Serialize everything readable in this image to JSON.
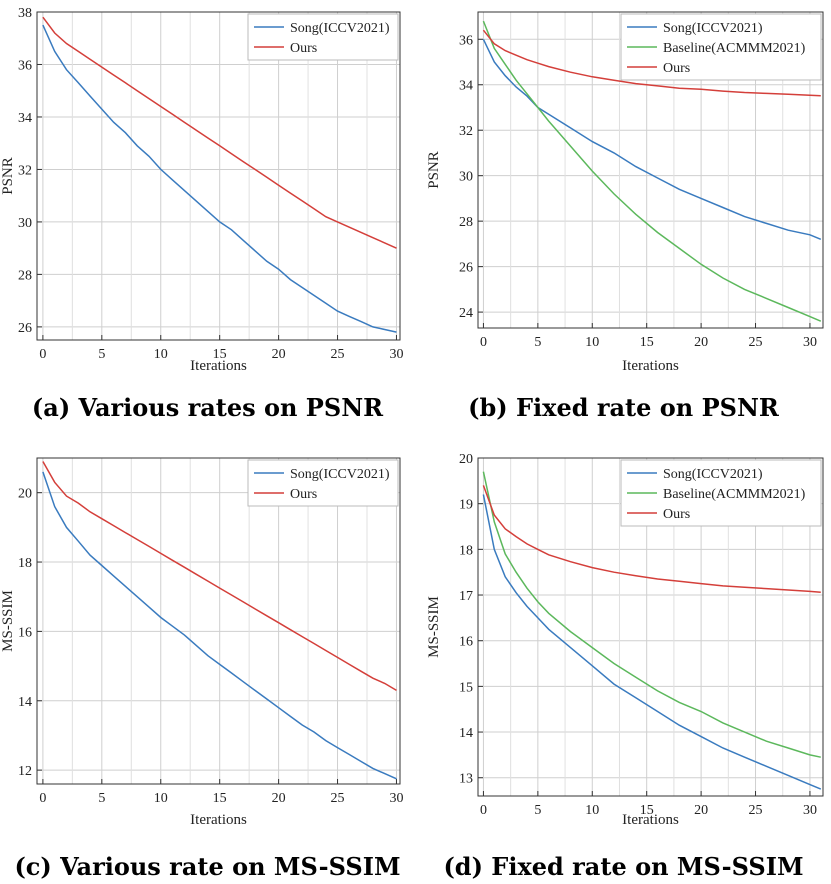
{
  "chart_data": [
    {
      "id": "a",
      "type": "line",
      "caption": "(a) Various rates on PSNR",
      "xlabel": "Iterations",
      "ylabel": "PSNR",
      "xlim": [
        -0.5,
        30.3
      ],
      "ylim": [
        25.5,
        38.0
      ],
      "xticks": [
        0,
        5,
        10,
        15,
        20,
        25,
        30
      ],
      "yticks": [
        26,
        28,
        30,
        32,
        34,
        36,
        38
      ],
      "grid": true,
      "legend": "top-right",
      "series": [
        {
          "name": "Song(ICCV2021)",
          "color": "#3a7bbf",
          "x": [
            0,
            1,
            2,
            3,
            4,
            5,
            6,
            7,
            8,
            9,
            10,
            11,
            12,
            13,
            14,
            15,
            16,
            17,
            18,
            19,
            20,
            21,
            22,
            23,
            24,
            25,
            26,
            27,
            28,
            29,
            30
          ],
          "y": [
            37.5,
            36.5,
            35.8,
            35.3,
            34.8,
            34.3,
            33.8,
            33.4,
            32.9,
            32.5,
            32.0,
            31.6,
            31.2,
            30.8,
            30.4,
            30.0,
            29.7,
            29.3,
            28.9,
            28.5,
            28.2,
            27.8,
            27.5,
            27.2,
            26.9,
            26.6,
            26.4,
            26.2,
            26.0,
            25.9,
            25.8
          ]
        },
        {
          "name": "Ours",
          "color": "#d43f3a",
          "x": [
            0,
            1,
            2,
            3,
            4,
            5,
            6,
            7,
            8,
            9,
            10,
            11,
            12,
            13,
            14,
            15,
            16,
            17,
            18,
            19,
            20,
            21,
            22,
            23,
            24,
            25,
            26,
            27,
            28,
            29,
            30
          ],
          "y": [
            37.8,
            37.2,
            36.8,
            36.5,
            36.2,
            35.9,
            35.6,
            35.3,
            35.0,
            34.7,
            34.4,
            34.1,
            33.8,
            33.5,
            33.2,
            32.9,
            32.6,
            32.3,
            32.0,
            31.7,
            31.4,
            31.1,
            30.8,
            30.5,
            30.2,
            30.0,
            29.8,
            29.6,
            29.4,
            29.2,
            29.0
          ]
        }
      ]
    },
    {
      "id": "b",
      "type": "line",
      "caption": "(b) Fixed rate on PSNR",
      "xlabel": "Iterations",
      "ylabel": "PSNR",
      "xlim": [
        -0.5,
        31.2
      ],
      "ylim": [
        23.3,
        37.2
      ],
      "xticks": [
        0,
        5,
        10,
        15,
        20,
        25,
        30
      ],
      "yticks": [
        24,
        26,
        28,
        30,
        32,
        34,
        36
      ],
      "grid": true,
      "legend": "top-right",
      "series": [
        {
          "name": "Song(ICCV2021)",
          "color": "#3a7bbf",
          "x": [
            0,
            1,
            2,
            3,
            4,
            5,
            6,
            8,
            10,
            12,
            14,
            16,
            18,
            20,
            22,
            24,
            26,
            28,
            30,
            31
          ],
          "y": [
            36.0,
            35.0,
            34.4,
            33.9,
            33.5,
            33.0,
            32.7,
            32.1,
            31.5,
            31.0,
            30.4,
            29.9,
            29.4,
            29.0,
            28.6,
            28.2,
            27.9,
            27.6,
            27.4,
            27.2
          ]
        },
        {
          "name": "Baseline(ACMMM2021)",
          "color": "#5cb85c",
          "x": [
            0,
            1,
            2,
            3,
            4,
            5,
            6,
            8,
            10,
            12,
            14,
            16,
            18,
            20,
            22,
            24,
            26,
            28,
            30,
            31
          ],
          "y": [
            36.8,
            35.6,
            34.9,
            34.2,
            33.6,
            33.0,
            32.4,
            31.3,
            30.2,
            29.2,
            28.3,
            27.5,
            26.8,
            26.1,
            25.5,
            25.0,
            24.6,
            24.2,
            23.8,
            23.6
          ]
        },
        {
          "name": "Ours",
          "color": "#d43f3a",
          "x": [
            0,
            1,
            2,
            3,
            4,
            5,
            6,
            8,
            10,
            12,
            14,
            16,
            18,
            20,
            22,
            24,
            26,
            28,
            30,
            31
          ],
          "y": [
            36.4,
            35.8,
            35.5,
            35.3,
            35.1,
            34.95,
            34.8,
            34.55,
            34.35,
            34.2,
            34.05,
            33.95,
            33.85,
            33.8,
            33.72,
            33.66,
            33.62,
            33.58,
            33.54,
            33.52
          ]
        }
      ]
    },
    {
      "id": "c",
      "type": "line",
      "caption": "(c) Various rate on MS-SSIM",
      "xlabel": "Iterations",
      "ylabel": "MS-SSIM",
      "xlim": [
        -0.5,
        30.3
      ],
      "ylim": [
        11.6,
        21.0
      ],
      "xticks": [
        0,
        5,
        10,
        15,
        20,
        25,
        30
      ],
      "yticks": [
        12,
        14,
        16,
        18,
        20
      ],
      "grid": true,
      "legend": "top-right",
      "series": [
        {
          "name": "Song(ICCV2021)",
          "color": "#3a7bbf",
          "x": [
            0,
            1,
            2,
            3,
            4,
            5,
            6,
            7,
            8,
            9,
            10,
            11,
            12,
            13,
            14,
            15,
            16,
            17,
            18,
            19,
            20,
            21,
            22,
            23,
            24,
            25,
            26,
            27,
            28,
            29,
            30
          ],
          "y": [
            20.6,
            19.6,
            19.0,
            18.6,
            18.2,
            17.9,
            17.6,
            17.3,
            17.0,
            16.7,
            16.4,
            16.15,
            15.9,
            15.6,
            15.3,
            15.05,
            14.8,
            14.55,
            14.3,
            14.05,
            13.8,
            13.55,
            13.3,
            13.1,
            12.85,
            12.65,
            12.45,
            12.25,
            12.05,
            11.9,
            11.75
          ]
        },
        {
          "name": "Ours",
          "color": "#d43f3a",
          "x": [
            0,
            1,
            2,
            3,
            4,
            5,
            6,
            7,
            8,
            9,
            10,
            11,
            12,
            13,
            14,
            15,
            16,
            17,
            18,
            19,
            20,
            21,
            22,
            23,
            24,
            25,
            26,
            27,
            28,
            29,
            30
          ],
          "y": [
            20.9,
            20.3,
            19.9,
            19.7,
            19.45,
            19.25,
            19.05,
            18.85,
            18.65,
            18.45,
            18.25,
            18.05,
            17.85,
            17.65,
            17.45,
            17.25,
            17.05,
            16.85,
            16.65,
            16.45,
            16.25,
            16.05,
            15.85,
            15.65,
            15.45,
            15.25,
            15.05,
            14.85,
            14.65,
            14.5,
            14.3
          ]
        }
      ]
    },
    {
      "id": "d",
      "type": "line",
      "caption": "(d) Fixed rate on MS-SSIM",
      "xlabel": "Iterations",
      "ylabel": "MS-SSIM",
      "xlim": [
        -0.5,
        31.2
      ],
      "ylim": [
        12.6,
        20.0
      ],
      "xticks": [
        0,
        5,
        10,
        15,
        20,
        25,
        30
      ],
      "yticks": [
        13,
        14,
        15,
        16,
        17,
        18,
        19,
        20
      ],
      "grid": true,
      "legend": "top-right",
      "series": [
        {
          "name": "Song(ICCV2021)",
          "color": "#3a7bbf",
          "x": [
            0,
            1,
            2,
            3,
            4,
            5,
            6,
            8,
            10,
            12,
            14,
            16,
            18,
            20,
            22,
            24,
            26,
            28,
            30,
            31
          ],
          "y": [
            19.2,
            18.0,
            17.4,
            17.05,
            16.75,
            16.5,
            16.25,
            15.85,
            15.45,
            15.05,
            14.75,
            14.45,
            14.15,
            13.9,
            13.65,
            13.45,
            13.25,
            13.05,
            12.85,
            12.75
          ]
        },
        {
          "name": "Baseline(ACMMM2021)",
          "color": "#5cb85c",
          "x": [
            0,
            1,
            2,
            3,
            4,
            5,
            6,
            8,
            10,
            12,
            14,
            16,
            18,
            20,
            22,
            24,
            26,
            28,
            30,
            31
          ],
          "y": [
            19.7,
            18.6,
            17.9,
            17.5,
            17.15,
            16.85,
            16.6,
            16.2,
            15.85,
            15.5,
            15.2,
            14.9,
            14.65,
            14.45,
            14.2,
            14.0,
            13.8,
            13.65,
            13.5,
            13.45
          ]
        },
        {
          "name": "Ours",
          "color": "#d43f3a",
          "x": [
            0,
            1,
            2,
            3,
            4,
            5,
            6,
            8,
            10,
            12,
            14,
            16,
            18,
            20,
            22,
            24,
            26,
            28,
            30,
            31
          ],
          "y": [
            19.4,
            18.75,
            18.45,
            18.28,
            18.12,
            18.0,
            17.88,
            17.73,
            17.6,
            17.5,
            17.42,
            17.35,
            17.3,
            17.25,
            17.2,
            17.17,
            17.14,
            17.11,
            17.08,
            17.06
          ]
        }
      ]
    }
  ]
}
